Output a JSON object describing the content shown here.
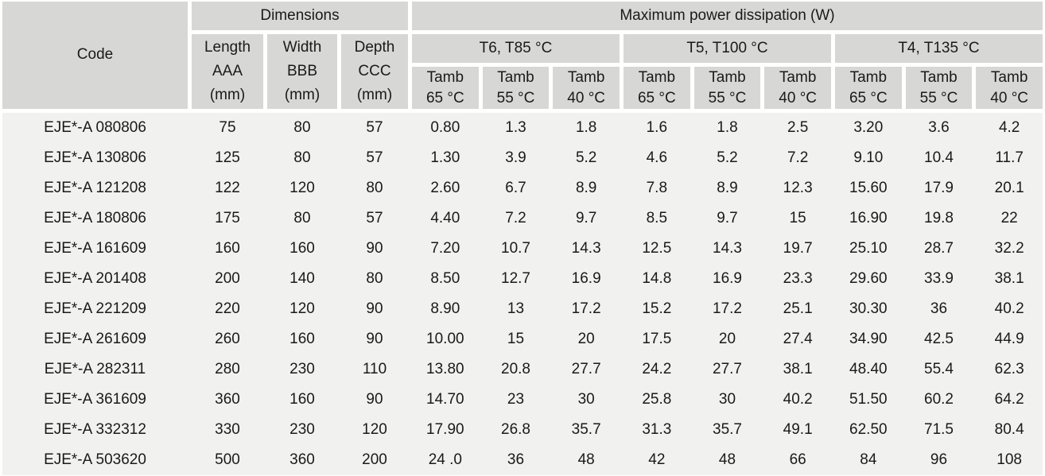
{
  "table": {
    "header": {
      "code_label": "Code",
      "dimensions_label": "Dimensions",
      "power_label": "Maximum power dissipation (W)",
      "dim_columns": [
        {
          "line1": "Length",
          "line2": "AAA",
          "line3": "(mm)"
        },
        {
          "line1": "Width",
          "line2": "BBB",
          "line3": "(mm)"
        },
        {
          "line1": "Depth",
          "line2": "CCC",
          "line3": "(mm)"
        }
      ],
      "temp_groups": [
        "T6, T85 °C",
        "T5, T100 °C",
        "T4, T135 °C"
      ],
      "tamb_label": "Tamb",
      "tamb_temps": [
        "65 °C",
        "55 °C",
        "40 °C",
        "65 °C",
        "55 °C",
        "40 °C",
        "65 °C",
        "55 °C",
        "40 °C"
      ]
    },
    "rows": [
      {
        "code": "EJE*-A 080806",
        "length": "75",
        "width": "80",
        "depth": "57",
        "values": [
          "0.80",
          "1.3",
          "1.8",
          "1.6",
          "1.8",
          "2.5",
          "3.20",
          "3.6",
          "4.2"
        ]
      },
      {
        "code": "EJE*-A 130806",
        "length": "125",
        "width": "80",
        "depth": "57",
        "values": [
          "1.30",
          "3.9",
          "5.2",
          "4.6",
          "5.2",
          "7.2",
          "9.10",
          "10.4",
          "11.7"
        ]
      },
      {
        "code": "EJE*-A 121208",
        "length": "122",
        "width": "120",
        "depth": "80",
        "values": [
          "2.60",
          "6.7",
          "8.9",
          "7.8",
          "8.9",
          "12.3",
          "15.60",
          "17.9",
          "20.1"
        ]
      },
      {
        "code": "EJE*-A 180806",
        "length": "175",
        "width": "80",
        "depth": "57",
        "values": [
          "4.40",
          "7.2",
          "9.7",
          "8.5",
          "9.7",
          "15",
          "16.90",
          "19.8",
          "22"
        ]
      },
      {
        "code": "EJE*-A 161609",
        "length": "160",
        "width": "160",
        "depth": "90",
        "values": [
          "7.20",
          "10.7",
          "14.3",
          "12.5",
          "14.3",
          "19.7",
          "25.10",
          "28.7",
          "32.2"
        ]
      },
      {
        "code": "EJE*-A 201408",
        "length": "200",
        "width": "140",
        "depth": "80",
        "values": [
          "8.50",
          "12.7",
          "16.9",
          "14.8",
          "16.9",
          "23.3",
          "29.60",
          "33.9",
          "38.1"
        ]
      },
      {
        "code": "EJE*-A 221209",
        "length": "220",
        "width": "120",
        "depth": "90",
        "values": [
          "8.90",
          "13",
          "17.2",
          "15.2",
          "17.2",
          "25.1",
          "30.30",
          "36",
          "40.2"
        ]
      },
      {
        "code": "EJE*-A 261609",
        "length": "260",
        "width": "160",
        "depth": "90",
        "values": [
          "10.00",
          "15",
          "20",
          "17.5",
          "20",
          "27.4",
          "34.90",
          "42.5",
          "44.9"
        ]
      },
      {
        "code": "EJE*-A 282311",
        "length": "280",
        "width": "230",
        "depth": "110",
        "values": [
          "13.80",
          "20.8",
          "27.7",
          "24.2",
          "27.7",
          "38.1",
          "48.40",
          "55.4",
          "62.3"
        ]
      },
      {
        "code": "EJE*-A 361609",
        "length": "360",
        "width": "160",
        "depth": "90",
        "values": [
          "14.70",
          "23",
          "30",
          "25.8",
          "30",
          "40.2",
          "51.50",
          "60.2",
          "64.2"
        ]
      },
      {
        "code": "EJE*-A 332312",
        "length": "330",
        "width": "230",
        "depth": "120",
        "values": [
          "17.90",
          "26.8",
          "35.7",
          "31.3",
          "35.7",
          "49.1",
          "62.50",
          "71.5",
          "80.4"
        ]
      },
      {
        "code": "EJE*-A 503620",
        "length": "500",
        "width": "360",
        "depth": "200",
        "values": [
          "24 .0",
          "36",
          "48",
          "42",
          "48",
          "66",
          "84",
          "96",
          "108"
        ]
      }
    ]
  },
  "colors": {
    "header_bg": "#d7d7d5",
    "body_bg": "#f1f1ef",
    "gap": "#ffffff",
    "text": "#1a1a1a"
  }
}
